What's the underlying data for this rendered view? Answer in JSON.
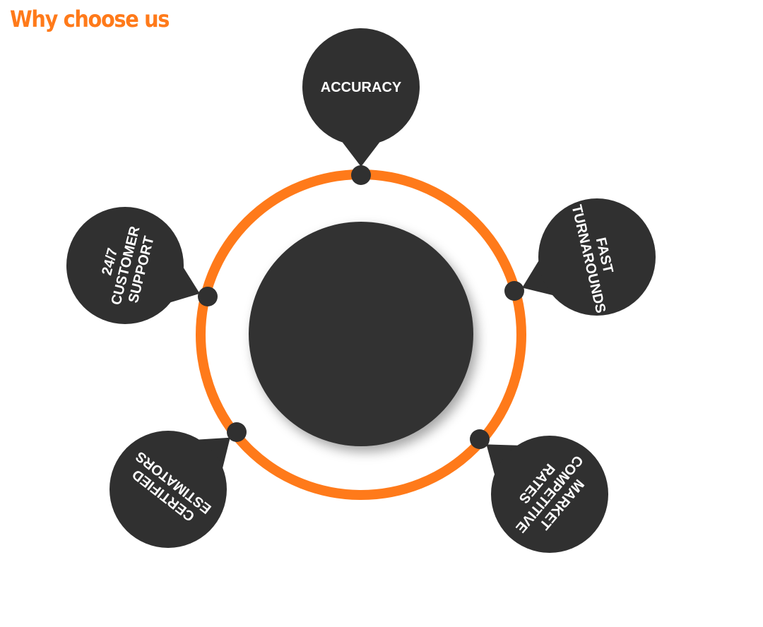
{
  "title": "Why choose us",
  "colors": {
    "title": "#ff7a1a",
    "ring": "#ff7a1a",
    "dark": "#303030",
    "label": "#ffffff"
  },
  "features": [
    {
      "lines": [
        "ACCURACY"
      ]
    },
    {
      "lines": [
        "FAST",
        "TURNAROUNDS"
      ]
    },
    {
      "lines": [
        "MARKET",
        "COMPETITIVE",
        "RATES"
      ]
    },
    {
      "lines": [
        "CERTIFIED",
        "ESTIMATORS"
      ]
    },
    {
      "lines": [
        "24/7",
        "CUSTOMER",
        "SUPPORT"
      ]
    }
  ]
}
